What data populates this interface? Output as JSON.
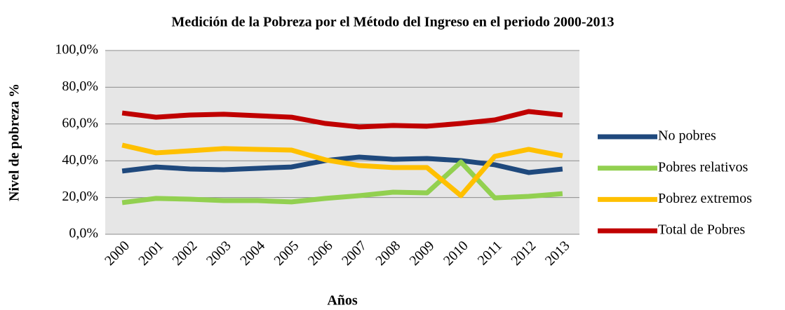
{
  "chart_data": {
    "type": "line",
    "title": "Medición de la Pobreza por el Método del Ingreso en el periodo 2000-2013",
    "x_label": "Años",
    "y_label": "Nivel de pobreza %",
    "categories": [
      "2000",
      "2001",
      "2002",
      "2003",
      "2004",
      "2005",
      "2006",
      "2007",
      "2008",
      "2009",
      "2010",
      "2011",
      "2012",
      "2013"
    ],
    "series": [
      {
        "name": "No pobres",
        "color": "#1f497d",
        "values": [
          34.4,
          36.6,
          35.5,
          35.1,
          35.9,
          36.6,
          40.1,
          42.0,
          40.8,
          41.2,
          40.1,
          37.8,
          33.6,
          35.5
        ]
      },
      {
        "name": "Pobres relativos",
        "color": "#92d050",
        "values": [
          17.2,
          19.5,
          19.1,
          18.3,
          18.3,
          17.6,
          19.5,
          21.0,
          22.9,
          22.5,
          39.3,
          19.8,
          20.6,
          22.1
        ]
      },
      {
        "name": "Pobrez extremos",
        "color": "#ffc000",
        "values": [
          48.5,
          44.3,
          45.4,
          46.6,
          46.2,
          45.8,
          40.5,
          37.4,
          36.3,
          36.3,
          21.0,
          42.4,
          46.2,
          42.7
        ]
      },
      {
        "name": "Total de Pobres",
        "color": "#c00000",
        "values": [
          66.0,
          63.7,
          64.9,
          65.3,
          64.5,
          63.7,
          60.3,
          58.4,
          59.2,
          58.8,
          60.3,
          62.2,
          66.8,
          64.9
        ]
      }
    ],
    "ylim": [
      0,
      100
    ],
    "yticks": [
      {
        "value": 0,
        "label": "0,0%"
      },
      {
        "value": 20,
        "label": "20,0%"
      },
      {
        "value": 40,
        "label": "40,0%"
      },
      {
        "value": 60,
        "label": "60,0%"
      },
      {
        "value": 80,
        "label": "80,0%"
      },
      {
        "value": 100,
        "label": "100,0%"
      }
    ],
    "grid": true,
    "legend": "right"
  }
}
